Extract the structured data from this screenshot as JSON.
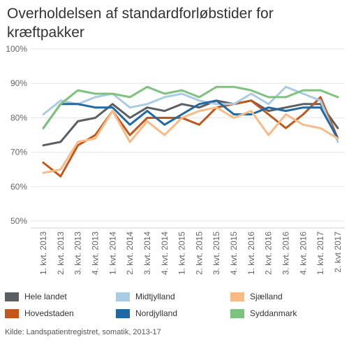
{
  "title": "Overholdelsen af standardforløbstider for kræftpakker",
  "source": "Kilde: Landspatientregistret, somatik, 2013-17",
  "chart_data": {
    "type": "line",
    "title": "Overholdelsen af standardforløbstider for kræftpakker",
    "xlabel": "",
    "ylabel": "",
    "ylim": [
      48,
      100
    ],
    "yticks": [
      "50%",
      "60%",
      "70%",
      "80%",
      "90%",
      "100%"
    ],
    "ytick_values": [
      50,
      60,
      70,
      80,
      90,
      100
    ],
    "grid": true,
    "legend_position": "bottom",
    "categories": [
      "1. kvt. 2013",
      "2. kvt. 2013",
      "3. kvt. 2013",
      "4. kvt. 2013",
      "1. kvt. 2014",
      "2. kvt. 2014",
      "3. kvt. 2014",
      "4. kvt. 2014",
      "1. kvt. 2015",
      "2. kvt. 2015",
      "3. kvt. 2015",
      "4. kvt. 2015",
      "1. kvt. 2016",
      "2. kvt. 2016",
      "3. kvt. 2016",
      "4. kvt. 2016",
      "1. kvt. 2017",
      "2. kvt 2017"
    ],
    "labeled_categories": [
      "1. kvt. 2013",
      "2. kvt. 2013",
      "3. kvt. 2013",
      "4. kvt. 2013",
      "1. kvt. 2014",
      "2. kvt. 2014",
      "3. kvt. 2014",
      "4. kvt. 2014",
      "1. kvt. 2015",
      "2. kvt. 2015",
      "3. kvt. 2015",
      "4. kvt. 2015",
      "1. kvt. 2016",
      "2. kvt. 2016",
      "3. kvt. 2016",
      "4. kvt. 2016",
      "1. kvt. 2017",
      "2. kvt 2017"
    ],
    "series": [
      {
        "name": "Hele landet",
        "color": "#5b5e63",
        "values": [
          72,
          73,
          79,
          80,
          84,
          80,
          83,
          82,
          84,
          83,
          85,
          84,
          85,
          82,
          83,
          84,
          84,
          77
        ]
      },
      {
        "name": "Hovedstaden",
        "color": "#c4561a",
        "values": [
          67,
          63,
          72,
          75,
          82,
          75,
          80,
          80,
          80,
          78,
          83,
          84,
          85,
          81,
          77,
          81,
          86,
          74
        ]
      },
      {
        "name": "Midtjylland",
        "color": "#a9cce6",
        "values": [
          81,
          85,
          84,
          86,
          87,
          83,
          84,
          86,
          87,
          85,
          84,
          84,
          87,
          84,
          89,
          87,
          85,
          73
        ]
      },
      {
        "name": "Nordjylland",
        "color": "#1f6aa5",
        "values": [
          77,
          84,
          84,
          83,
          83,
          78,
          82,
          78,
          81,
          84,
          85,
          81,
          81,
          83,
          82,
          83,
          83,
          74
        ]
      },
      {
        "name": "Sjælland",
        "color": "#f8bb86",
        "values": [
          64,
          65,
          73,
          74,
          82,
          73,
          79,
          75,
          80,
          82,
          83,
          80,
          82,
          75,
          81,
          78,
          77,
          74
        ]
      },
      {
        "name": "Syddanmark",
        "color": "#7dc27d",
        "values": [
          77,
          84,
          88,
          87,
          87,
          86,
          89,
          87,
          88,
          86,
          89,
          89,
          88,
          86,
          86,
          88,
          88,
          86
        ]
      }
    ]
  }
}
